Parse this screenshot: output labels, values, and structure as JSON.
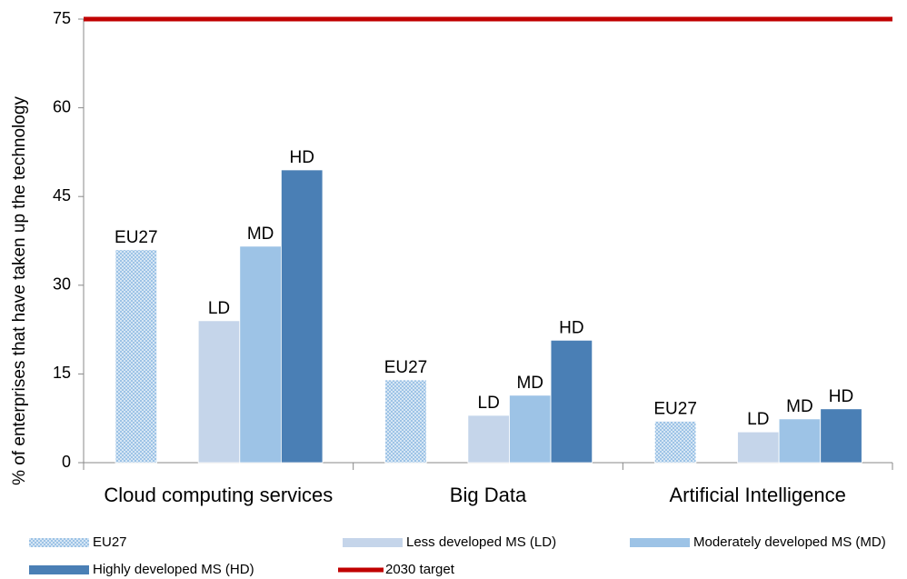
{
  "chart_data": {
    "type": "bar",
    "ylabel": "% of enterprises that have taken up the technology",
    "categories": [
      "Cloud computing services",
      "Big Data",
      "Artificial Intelligence"
    ],
    "series": [
      {
        "name": "EU27",
        "short_name": "EU27",
        "color": "#9dc3e6",
        "pattern": "dots",
        "values": [
          36,
          14,
          7
        ]
      },
      {
        "name": "Less developed MS (LD)",
        "short_name": "LD",
        "color": "#c5d5ea",
        "values": [
          24,
          8,
          5.2
        ]
      },
      {
        "name": "Moderately developed MS (MD)",
        "short_name": "MD",
        "color": "#9dc3e6",
        "values": [
          36.6,
          11.4,
          7.4
        ]
      },
      {
        "name": "Highly developed MS (HD)",
        "short_name": "HD",
        "color": "#4a7fb5",
        "values": [
          49.5,
          20.7,
          9.1
        ]
      }
    ],
    "target": {
      "name": "2030 target",
      "value": 75,
      "color": "#c00000"
    },
    "ylim": [
      0,
      75
    ],
    "yticks": [
      0,
      15,
      30,
      45,
      60,
      75
    ]
  }
}
